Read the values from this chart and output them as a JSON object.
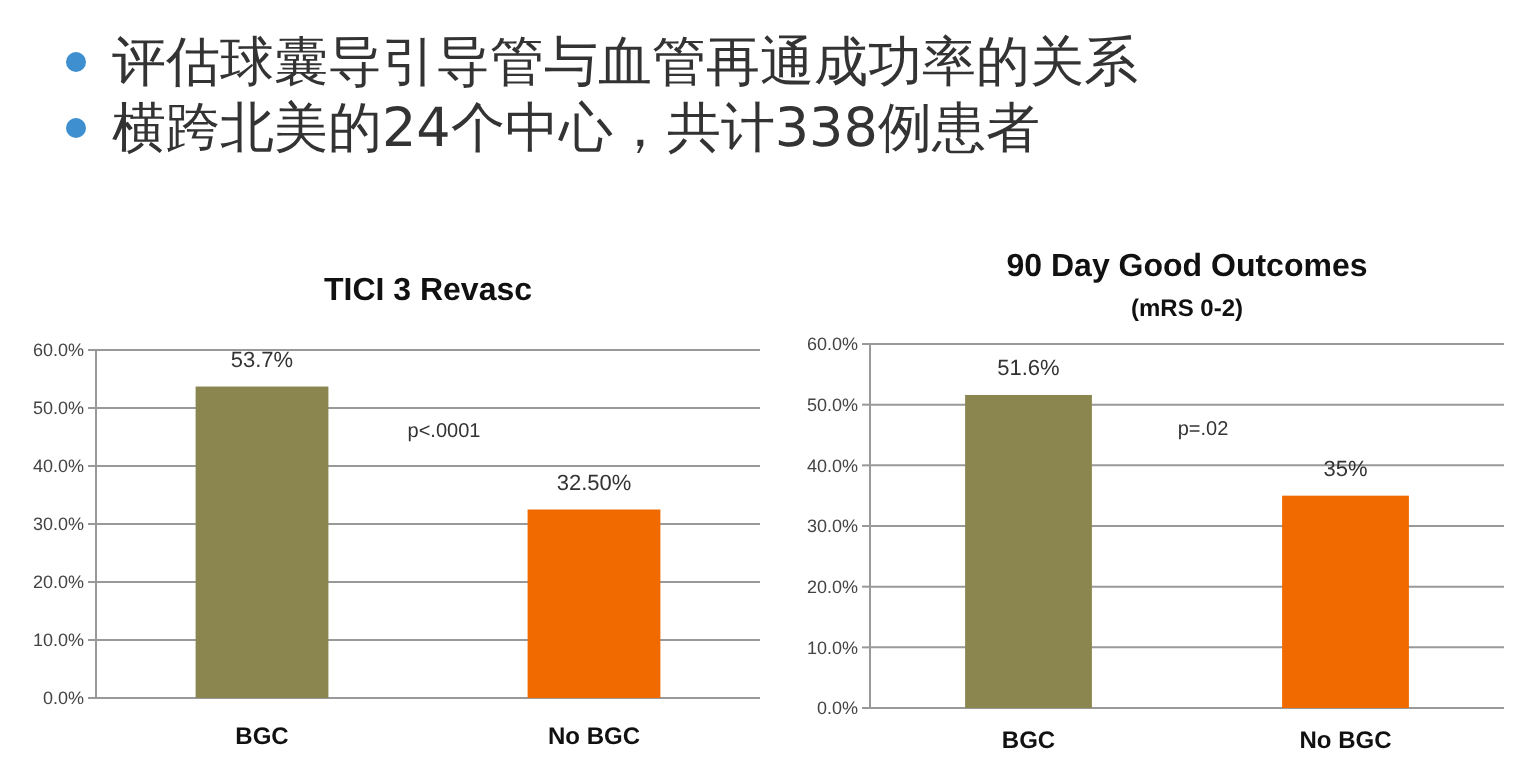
{
  "chart_data": [
    {
      "type": "other",
      "annotations": [
        "评估球囊导引导管与血管再通成功率的关系",
        "横跨北美的24个中心，共计338例患者"
      ]
    },
    {
      "type": "bar",
      "title": "TICI 3 Revasc",
      "categories": [
        "BGC",
        "No BGC"
      ],
      "values": [
        53.7,
        32.5
      ],
      "colors": [
        "#8b8550",
        "#f06a00"
      ],
      "value_labels": [
        "53.7%",
        "32.50%"
      ],
      "ylim": [
        0,
        60
      ],
      "yticks": [
        {
          "value": 0,
          "label": "0.0%"
        },
        {
          "value": 10,
          "label": "10.0%"
        },
        {
          "value": 20,
          "label": "20.0%"
        },
        {
          "value": 30,
          "label": "30.0%"
        },
        {
          "value": 40,
          "label": "40.0%"
        },
        {
          "value": 50,
          "label": "50.0%"
        },
        {
          "value": 60,
          "label": "60.0%"
        }
      ],
      "grid": "y",
      "annotations": [
        "p<.0001"
      ]
    },
    {
      "type": "bar",
      "title": "90 Day Good Outcomes",
      "subtitle": "(mRS 0-2)",
      "categories": [
        "BGC",
        "No BGC"
      ],
      "values": [
        51.6,
        35
      ],
      "colors": [
        "#8b8550",
        "#f06a00"
      ],
      "value_labels": [
        "51.6%",
        "35%"
      ],
      "ylim": [
        0,
        60
      ],
      "yticks": [
        {
          "value": 0,
          "label": "0.0%"
        },
        {
          "value": 10,
          "label": "10.0%"
        },
        {
          "value": 20,
          "label": "20.0%"
        },
        {
          "value": 30,
          "label": "30.0%"
        },
        {
          "value": 40,
          "label": "40.0%"
        },
        {
          "value": 50,
          "label": "50.0%"
        },
        {
          "value": 60,
          "label": "60.0%"
        }
      ],
      "grid": "y",
      "annotations": [
        "p=.02"
      ]
    }
  ]
}
